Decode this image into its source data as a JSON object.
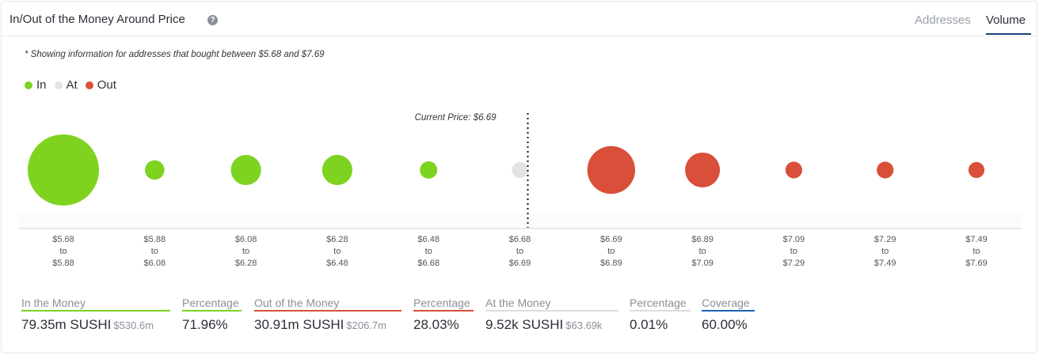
{
  "header": {
    "title": "In/Out of the Money Around Price",
    "help_icon": "question-circle-icon",
    "tabs": [
      {
        "label": "Addresses",
        "active": false
      },
      {
        "label": "Volume",
        "active": true
      }
    ]
  },
  "note": "* Showing information for addresses that bought between $5.68 and $7.69",
  "legend": [
    {
      "label": "In",
      "color": "#7ed321"
    },
    {
      "label": "At",
      "color": "#e3e3e3"
    },
    {
      "label": "Out",
      "color": "#d94f3a"
    }
  ],
  "chart_data": {
    "type": "scatter",
    "current_price_label": "Current Price: $6.69",
    "current_price": 6.69,
    "buckets": [
      {
        "from": "$5.68",
        "to": "$5.88",
        "status": "in",
        "relative_volume": 1.0
      },
      {
        "from": "$5.88",
        "to": "$6.08",
        "status": "in",
        "relative_volume": 0.075
      },
      {
        "from": "$6.08",
        "to": "$6.28",
        "status": "in",
        "relative_volume": 0.18
      },
      {
        "from": "$6.28",
        "to": "$6.48",
        "status": "in",
        "relative_volume": 0.18
      },
      {
        "from": "$6.48",
        "to": "$6.68",
        "status": "in",
        "relative_volume": 0.06
      },
      {
        "from": "$6.68",
        "to": "$6.69",
        "status": "at",
        "relative_volume": 0.05
      },
      {
        "from": "$6.69",
        "to": "$6.89",
        "status": "out",
        "relative_volume": 0.45
      },
      {
        "from": "$6.89",
        "to": "$7.09",
        "status": "out",
        "relative_volume": 0.24
      },
      {
        "from": "$7.09",
        "to": "$7.29",
        "status": "out",
        "relative_volume": 0.055
      },
      {
        "from": "$7.29",
        "to": "$7.49",
        "status": "out",
        "relative_volume": 0.055
      },
      {
        "from": "$7.49",
        "to": "$7.69",
        "status": "out",
        "relative_volume": 0.05
      }
    ],
    "range_word": "to",
    "colors": {
      "in": "#7ed321",
      "at": "#e3e3e3",
      "out": "#d94f3a"
    }
  },
  "stats": [
    {
      "label": "In the Money",
      "value": "79.35m SUSHI",
      "sub": "$530.6m",
      "color": "#7ed321"
    },
    {
      "label": "Percentage",
      "value": "71.96%",
      "sub": "",
      "color": "#7ed321"
    },
    {
      "label": "Out of the Money",
      "value": "30.91m SUSHI",
      "sub": "$206.7m",
      "color": "#d94f3a"
    },
    {
      "label": "Percentage",
      "value": "28.03%",
      "sub": "",
      "color": "#d94f3a"
    },
    {
      "label": "At the Money",
      "value": "9.52k SUSHI",
      "sub": "$63.69k",
      "color": "#dcdcdc"
    },
    {
      "label": "Percentage",
      "value": "0.01%",
      "sub": "",
      "color": "#dcdcdc"
    },
    {
      "label": "Coverage",
      "value": "60.00%",
      "sub": "",
      "color": "#1f5fb8"
    }
  ]
}
